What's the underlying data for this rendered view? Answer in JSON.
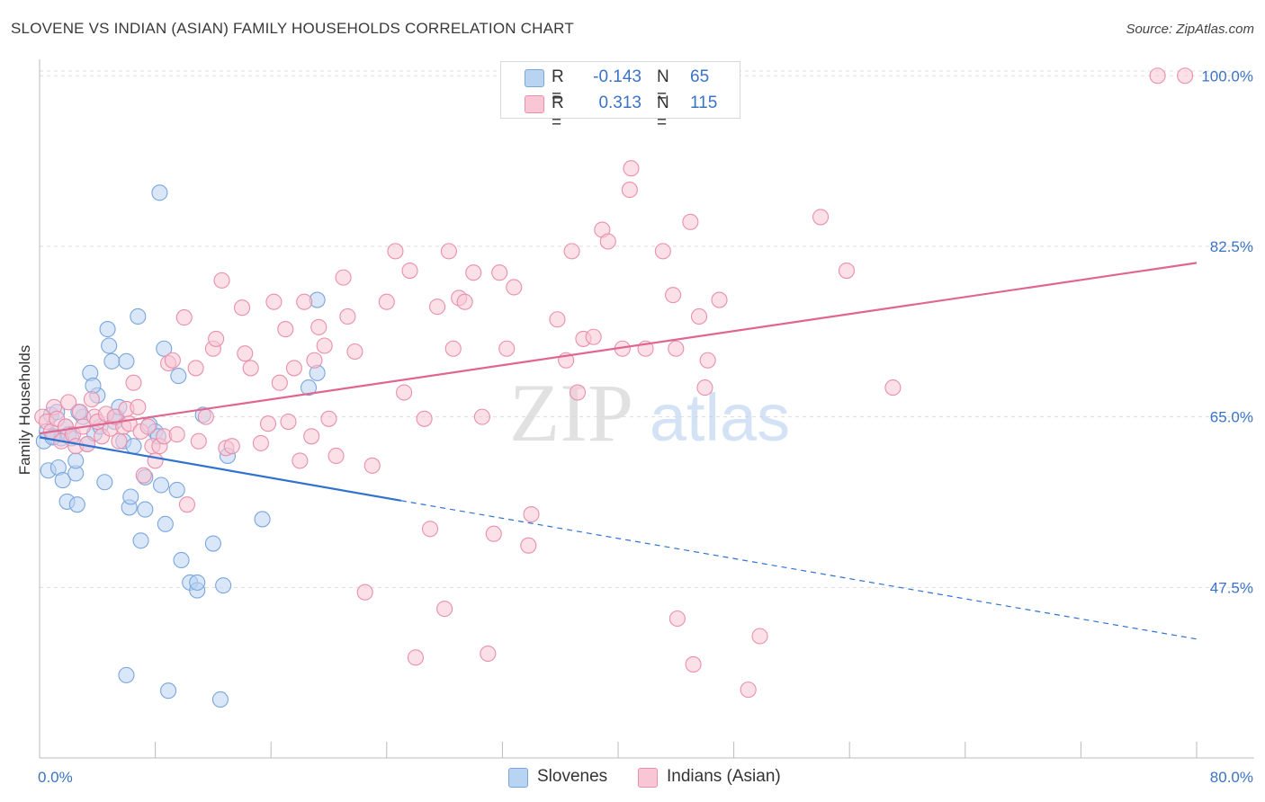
{
  "title": "SLOVENE VS INDIAN (ASIAN) FAMILY HOUSEHOLDS CORRELATION CHART",
  "source": "Source: ZipAtlas.com",
  "watermark": {
    "zip": "ZIP",
    "atlas": "atlas"
  },
  "legend": {
    "series1": {
      "r_label": "R =",
      "r_value": "-0.143",
      "n_label": "N =",
      "n_value": "65"
    },
    "series2": {
      "r_label": "R =",
      "r_value": "0.313",
      "n_label": "N =",
      "n_value": "115"
    }
  },
  "bottom_legend": {
    "series1": "Slovenes",
    "series2": "Indians (Asian)"
  },
  "colors": {
    "slovenes_fill": "#b9d3f3",
    "slovenes_stroke": "#7aa6dc",
    "slovenes_line": "#2f73cf",
    "indians_fill": "#f8c6d5",
    "indians_stroke": "#e98fac",
    "indians_line": "#e0668f",
    "axis_label": "#3b73c4",
    "grid": "#dddddd"
  },
  "chart_data": {
    "type": "scatter",
    "title": "SLOVENE VS INDIAN (ASIAN) FAMILY HOUSEHOLDS CORRELATION CHART",
    "xlabel": "",
    "ylabel": "Family Households",
    "xlim": [
      0,
      80
    ],
    "ylim": [
      30,
      101.5
    ],
    "x_tick_labels": [
      {
        "value": 0,
        "label": "0.0%"
      },
      {
        "value": 80,
        "label": "80.0%"
      }
    ],
    "y_ticks": [
      {
        "value": 47.5,
        "label": "47.5%"
      },
      {
        "value": 65.0,
        "label": "65.0%"
      },
      {
        "value": 82.5,
        "label": "82.5%"
      },
      {
        "value": 100.0,
        "label": "100.0%"
      }
    ],
    "series": [
      {
        "name": "Slovenes",
        "r": -0.143,
        "n": 65,
        "trend": {
          "x": [
            0,
            25
          ],
          "y": [
            62.9,
            56.4
          ],
          "dashed_to": [
            80,
            42.2
          ]
        },
        "points": [
          [
            0.3,
            62.5
          ],
          [
            0.5,
            63.5
          ],
          [
            0.6,
            59.5
          ],
          [
            0.8,
            65.2
          ],
          [
            1.0,
            63.0
          ],
          [
            1.2,
            65.5
          ],
          [
            1.3,
            59.8
          ],
          [
            1.5,
            62.8
          ],
          [
            1.6,
            58.5
          ],
          [
            1.8,
            64.0
          ],
          [
            1.9,
            56.3
          ],
          [
            2.0,
            63.2
          ],
          [
            2.2,
            62.8
          ],
          [
            2.5,
            59.2
          ],
          [
            2.5,
            60.5
          ],
          [
            2.6,
            56.0
          ],
          [
            3.0,
            65.0
          ],
          [
            3.3,
            62.2
          ],
          [
            3.5,
            69.5
          ],
          [
            3.8,
            63.3
          ],
          [
            4.0,
            67.2
          ],
          [
            4.2,
            64.0
          ],
          [
            4.5,
            58.3
          ],
          [
            4.7,
            74.0
          ],
          [
            4.8,
            72.3
          ],
          [
            5.0,
            70.7
          ],
          [
            5.2,
            64.5
          ],
          [
            5.3,
            65.0
          ],
          [
            5.5,
            66.0
          ],
          [
            5.8,
            62.5
          ],
          [
            6.0,
            70.7
          ],
          [
            6.2,
            55.7
          ],
          [
            6.3,
            56.8
          ],
          [
            6.5,
            62.0
          ],
          [
            6.8,
            75.3
          ],
          [
            7.0,
            52.3
          ],
          [
            7.3,
            58.8
          ],
          [
            7.3,
            55.5
          ],
          [
            7.6,
            64.2
          ],
          [
            8.0,
            63.5
          ],
          [
            8.2,
            63.0
          ],
          [
            8.3,
            88.0
          ],
          [
            8.4,
            58.0
          ],
          [
            8.6,
            72.0
          ],
          [
            8.7,
            54.0
          ],
          [
            8.9,
            36.9
          ],
          [
            9.5,
            57.5
          ],
          [
            9.6,
            69.2
          ],
          [
            9.8,
            50.3
          ],
          [
            10.4,
            48.0
          ],
          [
            10.9,
            47.2
          ],
          [
            10.9,
            48.0
          ],
          [
            11.3,
            65.2
          ],
          [
            12.0,
            52.0
          ],
          [
            12.7,
            47.7
          ],
          [
            13.0,
            61.0
          ],
          [
            15.4,
            54.5
          ],
          [
            18.6,
            68.0
          ],
          [
            19.2,
            69.5
          ],
          [
            19.2,
            77.0
          ],
          [
            3.7,
            68.2
          ],
          [
            2.7,
            65.5
          ],
          [
            0.9,
            62.9
          ],
          [
            12.5,
            36.0
          ],
          [
            6.0,
            38.5
          ]
        ]
      },
      {
        "name": "Indians (Asian)",
        "r": 0.313,
        "n": 115,
        "trend": {
          "x": [
            0,
            80
          ],
          "y": [
            63.3,
            80.8
          ]
        },
        "points": [
          [
            0.2,
            65.0
          ],
          [
            0.5,
            64.5
          ],
          [
            0.8,
            63.5
          ],
          [
            1.0,
            66.0
          ],
          [
            1.2,
            64.8
          ],
          [
            1.5,
            62.5
          ],
          [
            1.8,
            64.0
          ],
          [
            2.0,
            66.5
          ],
          [
            2.3,
            63.2
          ],
          [
            2.5,
            62.0
          ],
          [
            2.8,
            65.5
          ],
          [
            3.0,
            64.0
          ],
          [
            3.3,
            62.2
          ],
          [
            3.6,
            66.8
          ],
          [
            3.8,
            65.0
          ],
          [
            4.0,
            64.5
          ],
          [
            4.3,
            63.0
          ],
          [
            4.6,
            65.3
          ],
          [
            4.9,
            63.8
          ],
          [
            5.2,
            65.0
          ],
          [
            5.5,
            62.5
          ],
          [
            5.8,
            64.0
          ],
          [
            6.0,
            65.8
          ],
          [
            6.2,
            64.3
          ],
          [
            6.5,
            68.5
          ],
          [
            6.8,
            66.0
          ],
          [
            7.0,
            63.5
          ],
          [
            7.2,
            59.0
          ],
          [
            7.5,
            64.0
          ],
          [
            7.8,
            62.0
          ],
          [
            8.0,
            60.5
          ],
          [
            8.3,
            62.0
          ],
          [
            8.6,
            63.0
          ],
          [
            8.9,
            70.5
          ],
          [
            9.2,
            70.8
          ],
          [
            9.5,
            63.2
          ],
          [
            10.0,
            75.2
          ],
          [
            10.2,
            56.0
          ],
          [
            10.8,
            70.0
          ],
          [
            11.0,
            62.5
          ],
          [
            11.5,
            65.0
          ],
          [
            12.0,
            72.0
          ],
          [
            12.2,
            73.0
          ],
          [
            12.6,
            79.0
          ],
          [
            12.9,
            61.8
          ],
          [
            13.3,
            62.0
          ],
          [
            14.0,
            76.2
          ],
          [
            14.2,
            71.5
          ],
          [
            14.6,
            70.0
          ],
          [
            15.3,
            62.3
          ],
          [
            15.8,
            64.3
          ],
          [
            16.2,
            76.8
          ],
          [
            16.6,
            68.5
          ],
          [
            17.0,
            74.0
          ],
          [
            17.2,
            64.5
          ],
          [
            17.6,
            70.0
          ],
          [
            18.0,
            60.5
          ],
          [
            18.3,
            76.8
          ],
          [
            18.8,
            63.0
          ],
          [
            19.0,
            70.8
          ],
          [
            19.3,
            74.2
          ],
          [
            19.7,
            72.3
          ],
          [
            20.0,
            64.8
          ],
          [
            20.5,
            61.0
          ],
          [
            21.0,
            79.3
          ],
          [
            21.3,
            75.3
          ],
          [
            21.8,
            71.7
          ],
          [
            22.5,
            47.0
          ],
          [
            23.0,
            60.0
          ],
          [
            24.0,
            76.8
          ],
          [
            24.6,
            82.0
          ],
          [
            25.2,
            67.5
          ],
          [
            25.6,
            80.0
          ],
          [
            26.0,
            40.3
          ],
          [
            26.6,
            64.8
          ],
          [
            27.0,
            53.5
          ],
          [
            27.5,
            76.3
          ],
          [
            28.0,
            45.3
          ],
          [
            28.3,
            82.0
          ],
          [
            28.6,
            72.0
          ],
          [
            29.0,
            77.2
          ],
          [
            29.4,
            76.8
          ],
          [
            30.0,
            79.8
          ],
          [
            30.6,
            65.0
          ],
          [
            31.0,
            40.7
          ],
          [
            31.4,
            53.0
          ],
          [
            31.8,
            79.8
          ],
          [
            32.3,
            72.0
          ],
          [
            32.8,
            78.3
          ],
          [
            33.8,
            51.8
          ],
          [
            34.0,
            55.0
          ],
          [
            35.8,
            75.0
          ],
          [
            36.4,
            70.8
          ],
          [
            36.8,
            82.0
          ],
          [
            37.2,
            67.5
          ],
          [
            37.6,
            73.0
          ],
          [
            38.3,
            73.2
          ],
          [
            38.9,
            84.2
          ],
          [
            39.3,
            83.0
          ],
          [
            40.3,
            72.0
          ],
          [
            40.8,
            88.3
          ],
          [
            40.9,
            90.5
          ],
          [
            41.9,
            72.0
          ],
          [
            43.1,
            82.0
          ],
          [
            43.8,
            77.5
          ],
          [
            44.0,
            72.0
          ],
          [
            44.1,
            44.3
          ],
          [
            45.0,
            85.0
          ],
          [
            45.2,
            39.6
          ],
          [
            45.6,
            75.3
          ],
          [
            46.0,
            68.0
          ],
          [
            46.2,
            70.8
          ],
          [
            47.0,
            77.0
          ],
          [
            49.0,
            37.0
          ],
          [
            49.8,
            42.5
          ],
          [
            54.0,
            85.5
          ],
          [
            55.8,
            80.0
          ],
          [
            59.0,
            68.0
          ],
          [
            77.3,
            100.0
          ],
          [
            79.2,
            100.0
          ]
        ]
      }
    ]
  }
}
